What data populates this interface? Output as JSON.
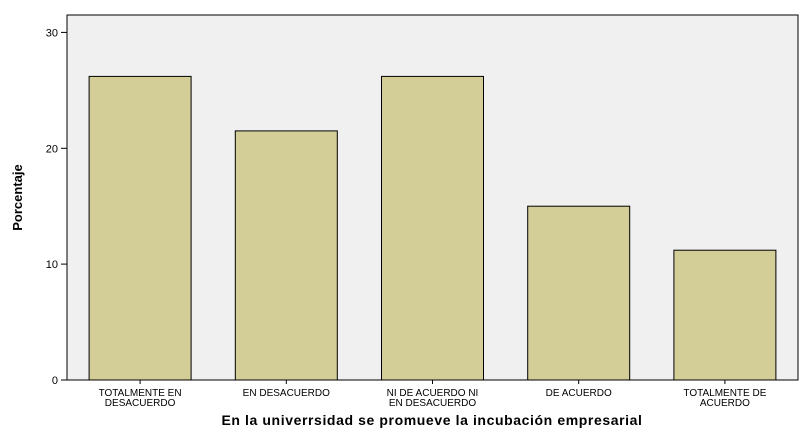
{
  "chart_data": {
    "type": "bar",
    "categories": [
      [
        "TOTALMENTE EN",
        "DESACUERDO"
      ],
      [
        "EN DESACUERDO"
      ],
      [
        "NI DE ACUERDO NI",
        "EN DESACUERDO"
      ],
      [
        "DE ACUERDO"
      ],
      [
        "TOTALMENTE DE",
        "ACUERDO"
      ]
    ],
    "values": [
      26.2,
      21.5,
      26.2,
      15.0,
      11.2
    ],
    "xlabel": "En la univerrsidad se promueve la incubación  empresarial",
    "ylabel": "Porcentaje",
    "ylim": [
      0,
      31.5
    ],
    "yticks": [
      0,
      10,
      20,
      30
    ],
    "grid": false,
    "colors": {
      "plot_background": "#f0f0f0",
      "bar_fill": "#d3ce97",
      "bar_stroke": "#000000",
      "axis": "#000000"
    }
  }
}
